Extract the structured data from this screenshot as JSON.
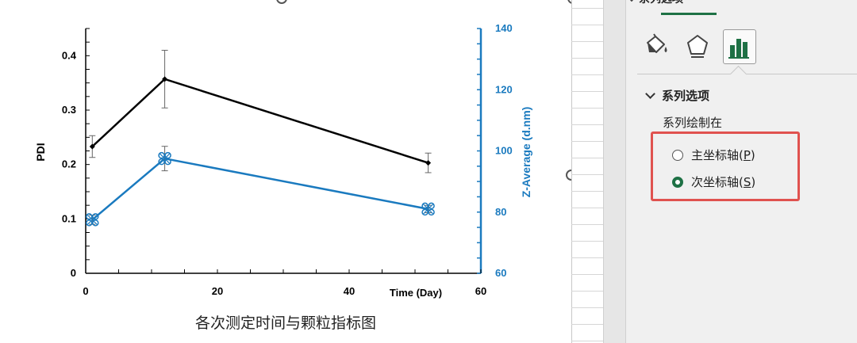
{
  "chart_data": {
    "type": "line",
    "title": "各次测定时间与颗粒指标图",
    "x": [
      1,
      12,
      52
    ],
    "x_ticks": [
      "0",
      "20",
      "40",
      "60"
    ],
    "xlabel": "Time (Day)",
    "xlim": [
      0,
      60
    ],
    "y_left_label": "PDI",
    "y_left_ticks": [
      "0",
      "0.1",
      "0.2",
      "0.3",
      "0.4"
    ],
    "ylim_left": [
      0,
      0.45
    ],
    "y_right_label": "Z-Average (d.nm)",
    "y_right_ticks": [
      "60",
      "80",
      "100",
      "120",
      "140"
    ],
    "ylim_right": [
      60,
      140
    ],
    "series": [
      {
        "name": "",
        "axis": "left",
        "color": "#000000",
        "values": [
          0.233,
          0.357,
          0.203
        ],
        "err": [
          0.02,
          0.053,
          0.018
        ]
      },
      {
        "name": "",
        "axis": "right",
        "color": "#1a7abf",
        "values": [
          77.5,
          97.5,
          81
        ],
        "err": [
          1.5,
          4,
          1.2
        ]
      }
    ]
  },
  "pane": {
    "tab_label": "系列选项",
    "section_title": "系列选项",
    "plot_on_label": "系列绘制在",
    "options": [
      {
        "text": "主坐标轴(",
        "key": "P",
        "close": ")",
        "checked": false
      },
      {
        "text": "次坐标轴(",
        "key": "S",
        "close": ")",
        "checked": true
      }
    ],
    "icons": [
      "fill-line-icon",
      "effects-pentagon-icon",
      "series-options-bar-icon"
    ]
  },
  "colors": {
    "accent": "#1e7145",
    "highlight": "#e0524f",
    "series_black": "#000000",
    "series_blue": "#1a7abf"
  }
}
